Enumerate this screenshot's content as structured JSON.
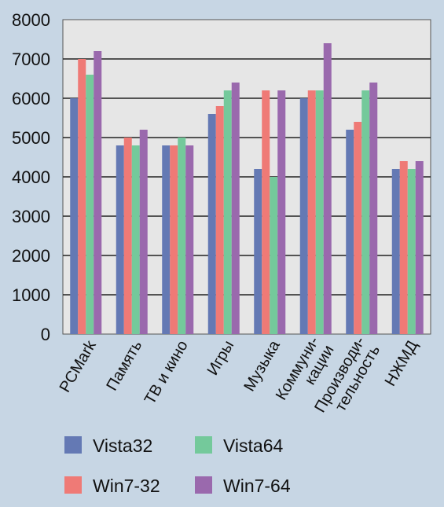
{
  "chart_data": {
    "type": "bar",
    "categories": [
      "PCMark",
      "Память",
      "ТВ и кино",
      "Игры",
      "Музыка",
      "Коммуни-\nкации",
      "Производи-\nтельность",
      "НЖМД"
    ],
    "series": [
      {
        "name": "Vista32",
        "color": "#6479b4",
        "values": [
          6000,
          4800,
          4800,
          5600,
          4200,
          6000,
          5200,
          4200
        ]
      },
      {
        "name": "Win7-32",
        "color": "#ef7a76",
        "values": [
          7000,
          5000,
          4800,
          5800,
          6200,
          6200,
          5400,
          4400
        ]
      },
      {
        "name": "Vista64",
        "color": "#74c99b",
        "values": [
          6600,
          4800,
          5000,
          6200,
          4000,
          6200,
          6200,
          4200
        ]
      },
      {
        "name": "Win7-64",
        "color": "#9a69ad",
        "values": [
          7200,
          5200,
          4800,
          6400,
          6200,
          7400,
          6400,
          4400
        ]
      }
    ],
    "y_ticks": [
      "0",
      "1000",
      "2000",
      "3000",
      "4000",
      "5000",
      "6000",
      "7000",
      "8000"
    ],
    "ylim": [
      0,
      8000
    ],
    "grid": true,
    "legend": [
      {
        "name": "Vista32",
        "color": "#6479b4"
      },
      {
        "name": "Vista64",
        "color": "#74c99b"
      },
      {
        "name": "Win7-32",
        "color": "#ef7a76"
      },
      {
        "name": "Win7-64",
        "color": "#9a69ad"
      }
    ],
    "legend_placement": "bottom",
    "title": "",
    "xlabel": "",
    "ylabel": ""
  }
}
